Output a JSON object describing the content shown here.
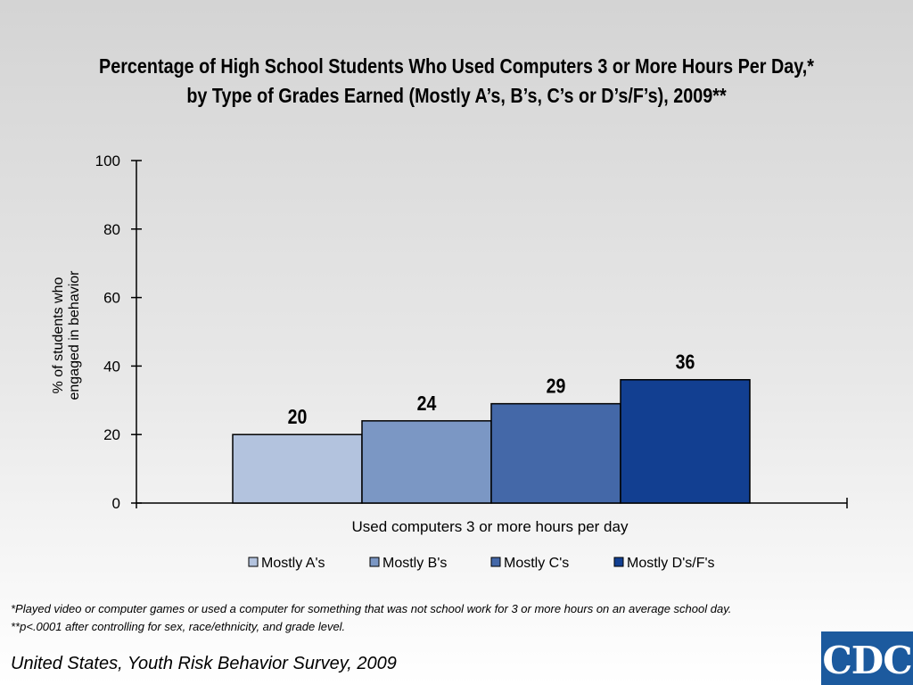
{
  "title_line1": "Percentage of High School Students Who Used Computers 3 or More Hours Per Day,*",
  "title_line2": "by Type of Grades Earned (Mostly A’s, B’s, C’s or D’s/F’s), 2009**",
  "footnote1": "*Played video or computer games or used a computer for something that was not school work for 3 or more hours on an average school day.",
  "footnote2": "**p<.0001 after controlling for sex, race/ethnicity, and grade level.",
  "source": "United States, Youth Risk Behavior Survey, 2009",
  "logo_text": "CDC",
  "chart_data": {
    "type": "bar",
    "categories": [
      "Used computers 3 or more hours per day"
    ],
    "series": [
      {
        "name": "Mostly A's",
        "values": [
          20
        ],
        "color": "#b3c3de"
      },
      {
        "name": "Mostly B's",
        "values": [
          24
        ],
        "color": "#7b97c4"
      },
      {
        "name": "Mostly C's",
        "values": [
          29
        ],
        "color": "#4468a8"
      },
      {
        "name": "Mostly D's/F's",
        "values": [
          36
        ],
        "color": "#123f91"
      }
    ],
    "xlabel": "Used computers 3 or more hours per day",
    "ylabel_lines": [
      "% of students who",
      "engaged in behavior"
    ],
    "ylim": [
      0,
      100
    ],
    "yticks": [
      0,
      20,
      40,
      60,
      80,
      100
    ],
    "legend_position": "bottom",
    "grid": false
  }
}
